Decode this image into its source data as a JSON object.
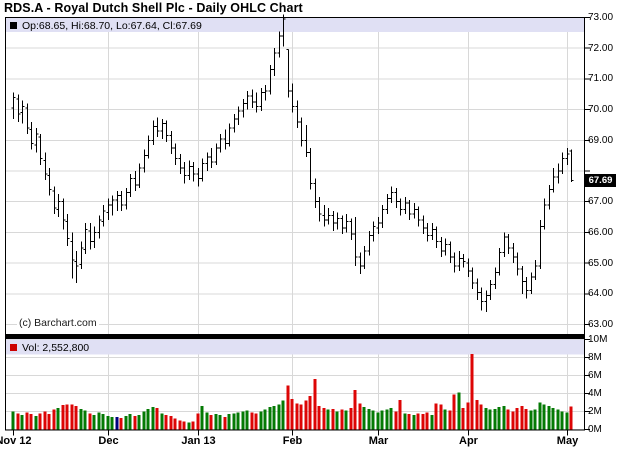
{
  "window": {
    "title": "RDS.A - Royal Dutch Shell Plc - Daily OHLC Chart"
  },
  "price_pane": {
    "legend": {
      "marker_color": "#000000",
      "text": "Op:68.65, Hi:68.70, Lo:67.64, Cl:67.69"
    },
    "copyright": "(c) Barchart.com",
    "current_price": "67.69"
  },
  "volume_pane": {
    "legend": {
      "marker_color": "#cc0000",
      "text": "Vol: 2,552,800"
    }
  },
  "colors": {
    "bar": "#000000",
    "up_volume": "#047a04",
    "down_volume": "#dd0505",
    "special_volume": "#000080",
    "grid": "#d8d8d8",
    "pane_border": "#000000",
    "legend_bg": "#e0e0f4",
    "badge_bg": "#000000",
    "badge_text": "#ffffff"
  },
  "chart_data": {
    "type": "ohlc+volume-bar",
    "title": "RDS.A - Royal Dutch Shell Plc - Daily OHLC Chart",
    "price_axis": {
      "min": 63,
      "max": 73,
      "tick_step": 1,
      "tick_format_decimals": 2,
      "side": "right"
    },
    "volume_axis": {
      "min_millions": 0,
      "max_millions": 10,
      "tick_step_millions": 2,
      "suffix": "M",
      "side": "right"
    },
    "x_ticks": [
      {
        "label": "Nov 12",
        "bar_index": 0
      },
      {
        "label": "Dec",
        "bar_index": 21
      },
      {
        "label": "Jan 13",
        "bar_index": 41
      },
      {
        "label": "Feb",
        "bar_index": 62
      },
      {
        "label": "Mar",
        "bar_index": 81
      },
      {
        "label": "Apr",
        "bar_index": 101
      },
      {
        "label": "May",
        "bar_index": 123
      }
    ],
    "grid": {
      "horizontal": true,
      "vertical_at_month_ticks": true
    },
    "bars_columns": [
      "open",
      "high",
      "low",
      "close",
      "volume_millions"
    ],
    "bars": [
      [
        70.05,
        70.55,
        69.7,
        70.4,
        2.0
      ],
      [
        70.35,
        70.5,
        69.6,
        69.85,
        1.8
      ],
      [
        69.9,
        70.3,
        69.55,
        70.1,
        1.6
      ],
      [
        70.05,
        70.2,
        69.2,
        69.4,
        1.9
      ],
      [
        69.35,
        69.6,
        68.7,
        68.9,
        1.7
      ],
      [
        68.85,
        69.4,
        68.6,
        69.2,
        1.5
      ],
      [
        69.1,
        69.2,
        68.2,
        68.4,
        1.8
      ],
      [
        68.35,
        68.6,
        67.7,
        67.9,
        2.0
      ],
      [
        67.85,
        68.1,
        67.2,
        67.4,
        1.7
      ],
      [
        67.35,
        67.5,
        66.6,
        66.8,
        2.2
      ],
      [
        66.75,
        67.25,
        66.5,
        67.0,
        2.4
      ],
      [
        67.0,
        67.1,
        66.1,
        66.4,
        2.7
      ],
      [
        66.35,
        66.6,
        65.55,
        65.8,
        2.8
      ],
      [
        65.7,
        66.0,
        64.5,
        65.1,
        2.8
      ],
      [
        65.05,
        65.4,
        64.35,
        64.9,
        2.6
      ],
      [
        64.95,
        65.7,
        64.8,
        65.5,
        2.3
      ],
      [
        65.45,
        66.3,
        65.3,
        66.1,
        2.1
      ],
      [
        66.05,
        66.3,
        65.45,
        65.7,
        1.8
      ],
      [
        65.7,
        66.2,
        65.5,
        66.0,
        1.6
      ],
      [
        66.0,
        66.55,
        65.8,
        66.4,
        1.9
      ],
      [
        66.35,
        66.9,
        66.2,
        66.7,
        1.7
      ],
      [
        66.65,
        67.1,
        66.4,
        66.9,
        1.5
      ],
      [
        66.9,
        67.2,
        66.55,
        67.05,
        1.4
      ],
      [
        67.05,
        67.35,
        66.7,
        67.2,
        1.4
      ],
      [
        67.2,
        67.35,
        66.7,
        66.9,
        1.3
      ],
      [
        66.9,
        67.45,
        66.75,
        67.3,
        1.5
      ],
      [
        67.3,
        67.9,
        67.15,
        67.75,
        1.7
      ],
      [
        67.75,
        68.0,
        67.35,
        67.55,
        1.5
      ],
      [
        67.55,
        68.25,
        67.45,
        68.1,
        1.6
      ],
      [
        68.1,
        68.7,
        67.95,
        68.5,
        2.0
      ],
      [
        68.5,
        69.15,
        68.4,
        69.0,
        2.3
      ],
      [
        69.0,
        69.65,
        68.85,
        69.45,
        2.5
      ],
      [
        69.45,
        69.75,
        69.1,
        69.3,
        2.4
      ],
      [
        69.3,
        69.7,
        69.05,
        69.55,
        1.8
      ],
      [
        69.55,
        69.65,
        68.95,
        69.15,
        1.6
      ],
      [
        69.15,
        69.3,
        68.55,
        68.75,
        1.5
      ],
      [
        68.75,
        68.9,
        68.2,
        68.4,
        1.2
      ],
      [
        68.4,
        68.55,
        67.9,
        68.1,
        1.0
      ],
      [
        68.1,
        68.3,
        67.6,
        67.85,
        0.9
      ],
      [
        67.85,
        68.35,
        67.7,
        68.15,
        0.8
      ],
      [
        68.15,
        68.3,
        67.65,
        67.9,
        0.9
      ],
      [
        67.9,
        68.1,
        67.5,
        67.75,
        1.8
      ],
      [
        67.75,
        68.4,
        67.65,
        68.25,
        2.6
      ],
      [
        68.25,
        68.6,
        68.0,
        68.45,
        1.9
      ],
      [
        68.45,
        68.75,
        68.1,
        68.3,
        1.6
      ],
      [
        68.3,
        68.9,
        68.2,
        68.75,
        1.7
      ],
      [
        68.75,
        69.2,
        68.6,
        69.05,
        1.6
      ],
      [
        69.05,
        69.35,
        68.7,
        68.9,
        1.4
      ],
      [
        68.9,
        69.55,
        68.8,
        69.4,
        1.7
      ],
      [
        69.4,
        69.85,
        69.25,
        69.7,
        1.8
      ],
      [
        69.7,
        70.1,
        69.5,
        69.95,
        1.9
      ],
      [
        69.95,
        70.35,
        69.75,
        70.2,
        2.0
      ],
      [
        70.2,
        70.6,
        70.0,
        70.45,
        2.1
      ],
      [
        70.45,
        70.65,
        70.05,
        70.25,
        1.9
      ],
      [
        70.25,
        70.55,
        69.9,
        70.1,
        1.8
      ],
      [
        70.1,
        70.7,
        69.95,
        70.55,
        2.0
      ],
      [
        70.55,
        70.8,
        70.3,
        70.6,
        2.2
      ],
      [
        70.6,
        71.45,
        70.5,
        71.3,
        2.5
      ],
      [
        71.3,
        72.0,
        71.1,
        71.85,
        2.6
      ],
      [
        71.85,
        72.55,
        71.7,
        72.4,
        2.8
      ],
      [
        72.4,
        73.1,
        72.05,
        72.95,
        3.2
      ],
      [
        71.95,
        71.95,
        70.4,
        70.6,
        4.9
      ],
      [
        70.6,
        70.85,
        69.9,
        70.1,
        3.4
      ],
      [
        70.1,
        70.3,
        69.4,
        69.6,
        2.9
      ],
      [
        69.6,
        69.75,
        68.8,
        69.0,
        2.8
      ],
      [
        69.0,
        69.5,
        68.45,
        68.6,
        3.2
      ],
      [
        68.6,
        68.75,
        67.4,
        67.6,
        3.7
      ],
      [
        67.6,
        67.75,
        66.8,
        67.0,
        5.6
      ],
      [
        67.0,
        67.15,
        66.35,
        66.6,
        2.6
      ],
      [
        66.55,
        66.9,
        66.2,
        66.4,
        2.4
      ],
      [
        66.4,
        66.8,
        66.25,
        66.55,
        2.2
      ],
      [
        66.55,
        66.7,
        66.05,
        66.3,
        2.3
      ],
      [
        66.3,
        66.65,
        66.1,
        66.45,
        2.0
      ],
      [
        66.45,
        66.55,
        65.95,
        66.15,
        2.2
      ],
      [
        66.15,
        66.6,
        66.0,
        66.35,
        2.1
      ],
      [
        66.35,
        66.45,
        65.75,
        65.95,
        2.4
      ],
      [
        65.95,
        66.5,
        64.9,
        65.2,
        4.4
      ],
      [
        65.2,
        65.35,
        64.65,
        64.9,
        2.9
      ],
      [
        64.9,
        65.55,
        64.8,
        65.4,
        2.5
      ],
      [
        65.4,
        66.05,
        65.25,
        65.9,
        2.3
      ],
      [
        65.9,
        66.35,
        65.7,
        66.2,
        2.1
      ],
      [
        66.15,
        66.5,
        65.95,
        66.3,
        1.9
      ],
      [
        66.3,
        66.9,
        66.15,
        66.75,
        2.1
      ],
      [
        66.75,
        67.25,
        66.6,
        67.1,
        2.2
      ],
      [
        67.1,
        67.5,
        66.95,
        67.3,
        2.4
      ],
      [
        67.3,
        67.45,
        66.8,
        67.0,
        2.0
      ],
      [
        67.0,
        67.1,
        66.55,
        66.75,
        3.3
      ],
      [
        66.75,
        67.15,
        66.6,
        66.95,
        1.8
      ],
      [
        66.95,
        67.05,
        66.4,
        66.6,
        1.7
      ],
      [
        66.6,
        66.95,
        66.45,
        66.75,
        1.6
      ],
      [
        66.75,
        66.85,
        66.2,
        66.4,
        1.8
      ],
      [
        66.4,
        66.55,
        65.95,
        66.15,
        1.7
      ],
      [
        66.15,
        66.3,
        65.7,
        65.9,
        1.9
      ],
      [
        65.9,
        66.3,
        65.75,
        66.1,
        1.6
      ],
      [
        66.1,
        66.2,
        65.5,
        65.7,
        2.9
      ],
      [
        65.7,
        65.85,
        65.2,
        65.4,
        2.8
      ],
      [
        65.4,
        65.8,
        65.25,
        65.6,
        2.2
      ],
      [
        65.6,
        65.7,
        65.0,
        65.2,
        2.1
      ],
      [
        65.2,
        65.35,
        64.7,
        64.9,
        3.9
      ],
      [
        64.9,
        65.4,
        64.75,
        65.15,
        4.1
      ],
      [
        65.15,
        65.3,
        64.85,
        65.05,
        2.4
      ],
      [
        65.0,
        65.15,
        64.55,
        64.75,
        3.0
      ],
      [
        64.75,
        64.85,
        64.15,
        64.35,
        8.4
      ],
      [
        64.35,
        64.5,
        63.8,
        64.05,
        3.3
      ],
      [
        64.05,
        64.2,
        63.45,
        63.75,
        2.8
      ],
      [
        63.75,
        64.1,
        63.4,
        63.95,
        2.4
      ],
      [
        63.95,
        64.45,
        63.8,
        64.3,
        2.2
      ],
      [
        64.3,
        64.85,
        64.15,
        64.7,
        2.3
      ],
      [
        64.7,
        65.5,
        64.6,
        65.35,
        2.5
      ],
      [
        65.35,
        66.0,
        65.2,
        65.85,
        2.6
      ],
      [
        65.85,
        65.95,
        65.3,
        65.5,
        2.2
      ],
      [
        65.5,
        65.65,
        65.0,
        65.2,
        2.0
      ],
      [
        65.2,
        65.35,
        64.6,
        64.8,
        2.4
      ],
      [
        64.8,
        64.9,
        64.0,
        64.4,
        2.6
      ],
      [
        64.4,
        64.55,
        63.85,
        64.1,
        2.3
      ],
      [
        64.1,
        64.7,
        64.0,
        64.55,
        2.1
      ],
      [
        64.55,
        65.1,
        64.45,
        64.9,
        2.2
      ],
      [
        64.9,
        66.4,
        64.8,
        66.2,
        3.0
      ],
      [
        66.2,
        67.1,
        66.1,
        66.9,
        2.8
      ],
      [
        66.9,
        67.55,
        66.75,
        67.4,
        2.6
      ],
      [
        67.4,
        68.1,
        67.3,
        67.8,
        2.4
      ],
      [
        67.8,
        68.25,
        67.6,
        68.0,
        2.2
      ],
      [
        68.0,
        68.6,
        67.9,
        68.4,
        2.0
      ],
      [
        68.4,
        68.75,
        68.2,
        68.55,
        1.9
      ],
      [
        68.65,
        68.7,
        67.64,
        67.69,
        2.55
      ]
    ],
    "volume_color_overrides": {
      "23": "#000080"
    },
    "last_bar_volume_label": "2,552,800"
  }
}
